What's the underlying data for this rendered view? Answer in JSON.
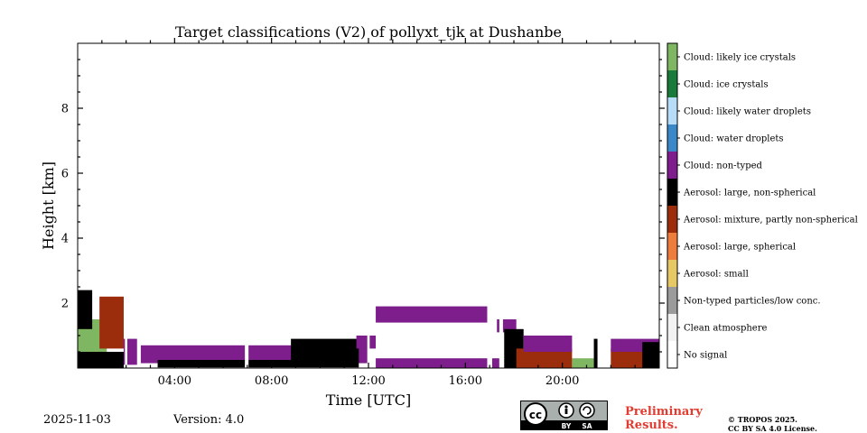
{
  "chart_data": {
    "type": "heatmap",
    "title": "Target classifications (V2) of pollyxt_tjk at Dushanbe",
    "xlabel": "Time [UTC]",
    "ylabel": "Height [km]",
    "xlim_hours": [
      0,
      24
    ],
    "ylim_km": [
      0,
      10
    ],
    "xticks": [
      {
        "value": 4,
        "label": "04:00"
      },
      {
        "value": 8,
        "label": "08:00"
      },
      {
        "value": 12,
        "label": "12:00"
      },
      {
        "value": 16,
        "label": "16:00"
      },
      {
        "value": 20,
        "label": "20:00"
      }
    ],
    "yticks": [
      {
        "value": 2,
        "label": "2"
      },
      {
        "value": 4,
        "label": "4"
      },
      {
        "value": 6,
        "label": "6"
      },
      {
        "value": 8,
        "label": "8"
      }
    ],
    "colorbar": [
      {
        "label": "Cloud: likely ice crystals",
        "color": "#7fb662"
      },
      {
        "label": "Cloud: ice crystals",
        "color": "#1a7a3c"
      },
      {
        "label": "Cloud: likely water droplets",
        "color": "#b7dcf7"
      },
      {
        "label": "Cloud: water droplets",
        "color": "#3a88c8"
      },
      {
        "label": "Cloud: non-typed",
        "color": "#7d1e8c"
      },
      {
        "label": "Aerosol: large, non-spherical",
        "color": "#000000"
      },
      {
        "label": "Aerosol: mixture, partly non-spherical",
        "color": "#9b2d0c"
      },
      {
        "label": "Aerosol: large, spherical",
        "color": "#ec7d3c"
      },
      {
        "label": "Aerosol: small",
        "color": "#e6c864"
      },
      {
        "label": "Non-typed particles/low conc.",
        "color": "#9b9b9b"
      },
      {
        "label": "Clean atmosphere",
        "color": "#f2f2f2"
      },
      {
        "label": "No signal",
        "color": "#ffffff"
      }
    ],
    "regions": [
      {
        "class": "Aerosol: large, non-spherical",
        "t0": 0.0,
        "t1": 1.9,
        "h0": 0.0,
        "h1": 0.5
      },
      {
        "class": "Cloud: likely ice crystals",
        "t0": 0.0,
        "t1": 1.2,
        "h0": 0.5,
        "h1": 1.5
      },
      {
        "class": "Aerosol: mixture, partly non-spherical",
        "t0": 0.9,
        "t1": 1.9,
        "h0": 0.6,
        "h1": 2.2
      },
      {
        "class": "Aerosol: large, non-spherical",
        "t0": 0.0,
        "t1": 0.6,
        "h0": 1.2,
        "h1": 2.4
      },
      {
        "class": "Cloud: non-typed",
        "t0": 1.9,
        "t1": 2.5,
        "h0": 0.1,
        "h1": 0.9
      },
      {
        "class": "Cloud: non-typed",
        "t0": 2.6,
        "t1": 12.0,
        "h0": 0.15,
        "h1": 0.7
      },
      {
        "class": "Aerosol: large, non-spherical",
        "t0": 3.3,
        "t1": 11.6,
        "h0": 0.02,
        "h1": 0.25
      },
      {
        "class": "Aerosol: large, non-spherical",
        "t0": 8.8,
        "t1": 11.6,
        "h0": 0.2,
        "h1": 0.9
      },
      {
        "class": "Cloud: non-typed",
        "t0": 11.5,
        "t1": 12.3,
        "h0": 0.6,
        "h1": 1.0
      },
      {
        "class": "Cloud: non-typed",
        "t0": 12.3,
        "t1": 16.9,
        "h0": 0.0,
        "h1": 0.3
      },
      {
        "class": "Cloud: non-typed",
        "t0": 12.3,
        "t1": 16.9,
        "h0": 1.4,
        "h1": 1.9
      },
      {
        "class": "Cloud: non-typed",
        "t0": 17.1,
        "t1": 17.4,
        "h0": 0.0,
        "h1": 0.3
      },
      {
        "class": "Cloud: non-typed",
        "t0": 17.3,
        "t1": 18.1,
        "h0": 1.1,
        "h1": 1.5
      },
      {
        "class": "Aerosol: large, non-spherical",
        "t0": 17.6,
        "t1": 18.4,
        "h0": 0.0,
        "h1": 1.2
      },
      {
        "class": "Aerosol: mixture, partly non-spherical",
        "t0": 18.1,
        "t1": 20.4,
        "h0": 0.0,
        "h1": 0.6
      },
      {
        "class": "Cloud: non-typed",
        "t0": 18.4,
        "t1": 20.4,
        "h0": 0.5,
        "h1": 1.0
      },
      {
        "class": "Cloud: likely ice crystals",
        "t0": 20.4,
        "t1": 21.3,
        "h0": 0.0,
        "h1": 0.3
      },
      {
        "class": "Aerosol: large, non-spherical",
        "t0": 21.3,
        "t1": 21.5,
        "h0": 0.0,
        "h1": 0.9
      },
      {
        "class": "Aerosol: mixture, partly non-spherical",
        "t0": 22.0,
        "t1": 24.0,
        "h0": 0.0,
        "h1": 0.6
      },
      {
        "class": "Cloud: non-typed",
        "t0": 22.0,
        "t1": 24.0,
        "h0": 0.5,
        "h1": 0.9
      },
      {
        "class": "Aerosol: large, non-spherical",
        "t0": 23.3,
        "t1": 24.0,
        "h0": 0.0,
        "h1": 0.8
      }
    ],
    "gaps_hours": [
      [
        1.95,
        2.05
      ],
      [
        2.45,
        2.6
      ],
      [
        6.9,
        7.05
      ],
      [
        11.95,
        12.05
      ],
      [
        16.9,
        17.1
      ],
      [
        17.4,
        17.55
      ],
      [
        21.45,
        21.55
      ]
    ]
  },
  "footer": {
    "date": "2025-11-03",
    "version": "Version: 4.0",
    "preliminary": [
      "Preliminary",
      "Results."
    ],
    "copyright": [
      "© TROPOS 2025.",
      "CC BY SA 4.0 License."
    ],
    "license_badge": {
      "cc": "cc",
      "by": "BY",
      "sa": "SA"
    }
  }
}
